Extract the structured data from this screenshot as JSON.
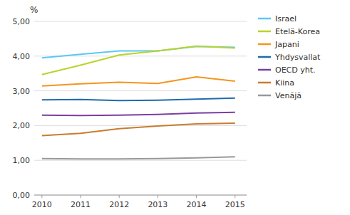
{
  "chart_data": {
    "type": "line",
    "ylabel": "%",
    "x": [
      2010,
      2011,
      2012,
      2013,
      2014,
      2015
    ],
    "xlim": [
      2009.8,
      2015.3
    ],
    "xticks": [
      2010,
      2011,
      2012,
      2013,
      2014,
      2015
    ],
    "ylim": [
      0,
      5.0
    ],
    "yticks": [
      {
        "value": 0.0,
        "label": "0,00"
      },
      {
        "value": 1.0,
        "label": "1,00"
      },
      {
        "value": 2.0,
        "label": "2,00"
      },
      {
        "value": 3.0,
        "label": "3,00"
      },
      {
        "value": 4.0,
        "label": "4,00"
      },
      {
        "value": 5.0,
        "label": "5,00"
      }
    ],
    "grid": true,
    "legend": "right",
    "series": [
      {
        "name": "Israel",
        "color": "#5BC8F5",
        "values": [
          3.95,
          4.05,
          4.15,
          4.15,
          4.28,
          4.25
        ]
      },
      {
        "name": "Etelä-Korea",
        "color": "#B8D429",
        "values": [
          3.47,
          3.74,
          4.03,
          4.15,
          4.29,
          4.23
        ]
      },
      {
        "name": "Japani",
        "color": "#F7941D",
        "values": [
          3.14,
          3.2,
          3.25,
          3.21,
          3.4,
          3.28
        ]
      },
      {
        "name": "Yhdysvallat",
        "color": "#1F6BB0",
        "values": [
          2.74,
          2.75,
          2.72,
          2.73,
          2.76,
          2.79
        ]
      },
      {
        "name": "OECD yht.",
        "color": "#7B3FA0",
        "values": [
          2.3,
          2.29,
          2.3,
          2.32,
          2.36,
          2.38
        ]
      },
      {
        "name": "Kiina",
        "color": "#C87C30",
        "values": [
          1.71,
          1.78,
          1.91,
          1.99,
          2.05,
          2.07
        ]
      },
      {
        "name": "Venäjä",
        "color": "#999999",
        "values": [
          1.05,
          1.04,
          1.04,
          1.05,
          1.07,
          1.1
        ]
      }
    ]
  }
}
